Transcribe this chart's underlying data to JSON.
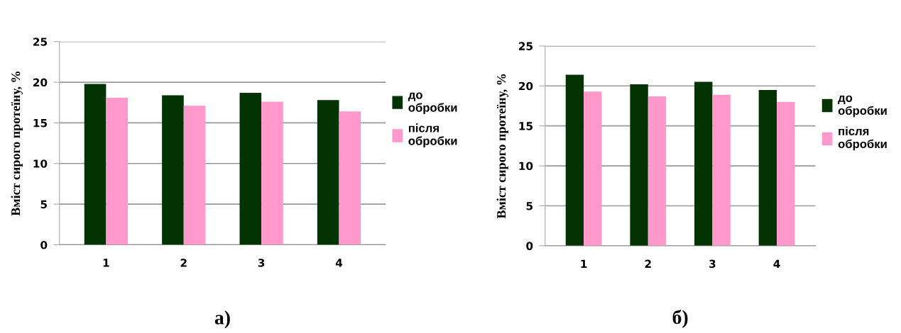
{
  "chart_data": [
    {
      "type": "bar",
      "title": "а)",
      "ylabel": "Вміст сирого протеїну, %",
      "categories": [
        "1",
        "2",
        "3",
        "4"
      ],
      "series": [
        {
          "name": "до обробки",
          "color": "#033303",
          "values": [
            19.8,
            18.4,
            18.7,
            17.8
          ]
        },
        {
          "name": "після обробки",
          "color": "#ff99cc",
          "values": [
            18.1,
            17.1,
            17.6,
            16.4
          ]
        }
      ],
      "ylim": [
        0,
        25
      ],
      "yticks": [
        0,
        5,
        10,
        15,
        20,
        25
      ],
      "grid": "y",
      "legend": "right"
    },
    {
      "type": "bar",
      "title": "б)",
      "ylabel": "Вміст сирого протеїну, %",
      "categories": [
        "1",
        "2",
        "3",
        "4"
      ],
      "series": [
        {
          "name": "до обробки",
          "color": "#033303",
          "values": [
            21.4,
            20.2,
            20.5,
            19.5
          ]
        },
        {
          "name": "після обробки",
          "color": "#ff99cc",
          "values": [
            19.3,
            18.7,
            18.9,
            18.0
          ]
        }
      ],
      "ylim": [
        0,
        25
      ],
      "yticks": [
        0,
        5,
        10,
        15,
        20,
        25
      ],
      "grid": "y",
      "legend": "right"
    }
  ]
}
